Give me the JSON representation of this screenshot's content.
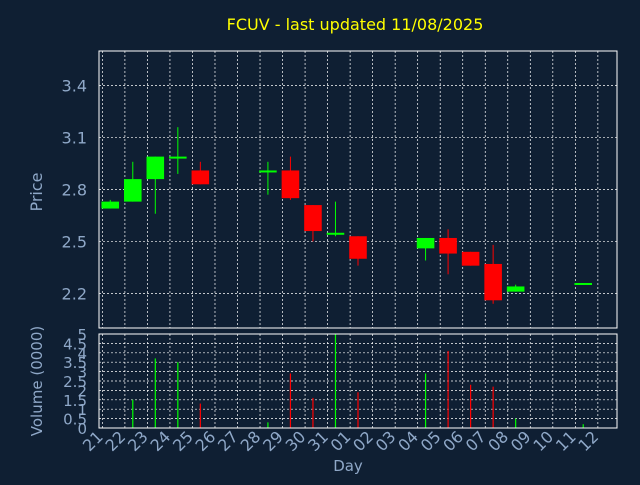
{
  "title": "FCUV - last updated 11/08/2025",
  "colors": {
    "background": "#0f1f33",
    "title": "#ffff00",
    "axis_text": "#8fa8c8",
    "grid": "#ffffff",
    "up": "#00ff00",
    "down": "#ff0000"
  },
  "chart_data": [
    {
      "type": "candlestick",
      "ylabel": "Price",
      "ylim": [
        2.0,
        3.6
      ],
      "yticks": [
        "2.2",
        "2.5",
        "2.8",
        "3.1",
        "3.4"
      ],
      "grid": true,
      "days": [
        "21",
        "22",
        "23",
        "24",
        "25",
        "26",
        "27",
        "28",
        "29",
        "30",
        "31",
        "01",
        "02",
        "03",
        "04",
        "05",
        "06",
        "07",
        "08",
        "09",
        "10",
        "11",
        "12"
      ],
      "candles": [
        {
          "day": "21",
          "open": 2.69,
          "high": 2.74,
          "low": 2.69,
          "close": 2.73
        },
        {
          "day": "22",
          "open": 2.73,
          "high": 2.96,
          "low": 2.73,
          "close": 2.86
        },
        {
          "day": "23",
          "open": 2.86,
          "high": 2.99,
          "low": 2.66,
          "close": 2.99
        },
        {
          "day": "24",
          "open": 2.98,
          "high": 3.16,
          "low": 2.89,
          "close": 2.99
        },
        {
          "day": "25",
          "open": 2.91,
          "high": 2.96,
          "low": 2.83,
          "close": 2.83
        },
        {
          "day": "28",
          "open": 2.9,
          "high": 2.96,
          "low": 2.77,
          "close": 2.91
        },
        {
          "day": "29",
          "open": 2.91,
          "high": 2.99,
          "low": 2.74,
          "close": 2.75
        },
        {
          "day": "30",
          "open": 2.71,
          "high": 2.71,
          "low": 2.5,
          "close": 2.56
        },
        {
          "day": "31",
          "open": 2.54,
          "high": 2.73,
          "low": 2.53,
          "close": 2.55
        },
        {
          "day": "01",
          "open": 2.53,
          "high": 2.53,
          "low": 2.36,
          "close": 2.4
        },
        {
          "day": "04",
          "open": 2.46,
          "high": 2.52,
          "low": 2.39,
          "close": 2.52
        },
        {
          "day": "05",
          "open": 2.52,
          "high": 2.57,
          "low": 2.31,
          "close": 2.43
        },
        {
          "day": "06",
          "open": 2.44,
          "high": 2.44,
          "low": 2.36,
          "close": 2.36
        },
        {
          "day": "07",
          "open": 2.37,
          "high": 2.48,
          "low": 2.14,
          "close": 2.16
        },
        {
          "day": "08",
          "open": 2.21,
          "high": 2.25,
          "low": 2.21,
          "close": 2.24
        },
        {
          "day": "11",
          "open": 2.26,
          "high": 2.26,
          "low": 2.26,
          "close": 2.26
        }
      ]
    },
    {
      "type": "bar",
      "ylabel": "Volume (0000)",
      "xlabel": "Day",
      "ylim": [
        0,
        5
      ],
      "yticks": [
        "0",
        "0.5",
        "1",
        "1.5",
        "2",
        "2.5",
        "3",
        "3.5",
        "4",
        "4.5",
        "5"
      ],
      "grid": true,
      "bars": [
        {
          "day": "22",
          "value": 1.5,
          "direction": "up"
        },
        {
          "day": "23",
          "value": 3.7,
          "direction": "up"
        },
        {
          "day": "24",
          "value": 3.5,
          "direction": "up"
        },
        {
          "day": "25",
          "value": 1.3,
          "direction": "down"
        },
        {
          "day": "28",
          "value": 0.3,
          "direction": "up"
        },
        {
          "day": "29",
          "value": 2.9,
          "direction": "down"
        },
        {
          "day": "30",
          "value": 1.6,
          "direction": "down"
        },
        {
          "day": "31",
          "value": 5.0,
          "direction": "up"
        },
        {
          "day": "01",
          "value": 1.9,
          "direction": "down"
        },
        {
          "day": "04",
          "value": 2.9,
          "direction": "up"
        },
        {
          "day": "05",
          "value": 4.1,
          "direction": "down"
        },
        {
          "day": "06",
          "value": 2.3,
          "direction": "down"
        },
        {
          "day": "07",
          "value": 2.2,
          "direction": "down"
        },
        {
          "day": "08",
          "value": 0.5,
          "direction": "up"
        },
        {
          "day": "11",
          "value": 0.2,
          "direction": "up"
        }
      ]
    }
  ]
}
